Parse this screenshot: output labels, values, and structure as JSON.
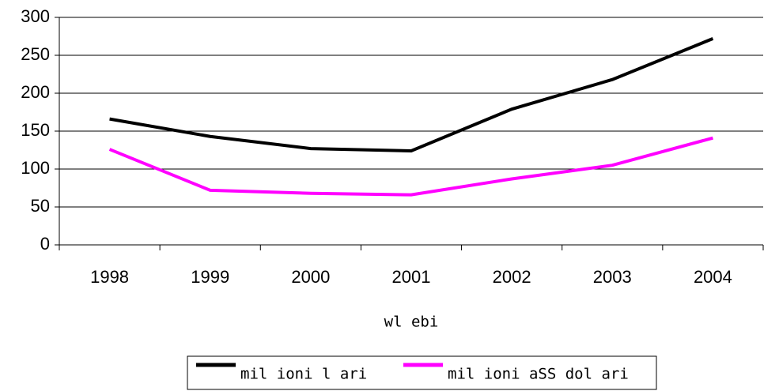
{
  "chart_data": {
    "type": "line",
    "x_label": "wl ebi",
    "categories": [
      "1998",
      "1999",
      "2000",
      "2001",
      "2002",
      "2003",
      "2004"
    ],
    "series": [
      {
        "name": "mil ioni l ari",
        "color": "#000000",
        "values": [
          166,
          143,
          127,
          124,
          179,
          218,
          272
        ]
      },
      {
        "name": "mil ioni aSS dol ari",
        "color": "#ff00ff",
        "values": [
          126,
          72,
          68,
          66,
          87,
          105,
          141
        ]
      }
    ],
    "ylim": [
      0,
      300
    ],
    "yticks": [
      0,
      50,
      100,
      150,
      200,
      250,
      300
    ],
    "grid": true,
    "legend": "bottom"
  }
}
